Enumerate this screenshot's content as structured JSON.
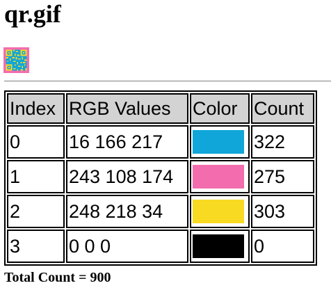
{
  "page": {
    "title": "qr.gif"
  },
  "table": {
    "headers": [
      "Index",
      "RGB Values",
      "Color",
      "Count"
    ],
    "rows": [
      {
        "index": "0",
        "rgb": "16 166 217",
        "color": "#10a6d9",
        "count": "322"
      },
      {
        "index": "1",
        "rgb": "243 108 174",
        "color": "#f36cae",
        "count": "275"
      },
      {
        "index": "2",
        "rgb": "248 218 34",
        "color": "#f8da22",
        "count": "303"
      },
      {
        "index": "3",
        "rgb": "0 0 0",
        "color": "#000000",
        "count": "0"
      }
    ]
  },
  "summary": {
    "total_label": "Total Count = 900"
  }
}
